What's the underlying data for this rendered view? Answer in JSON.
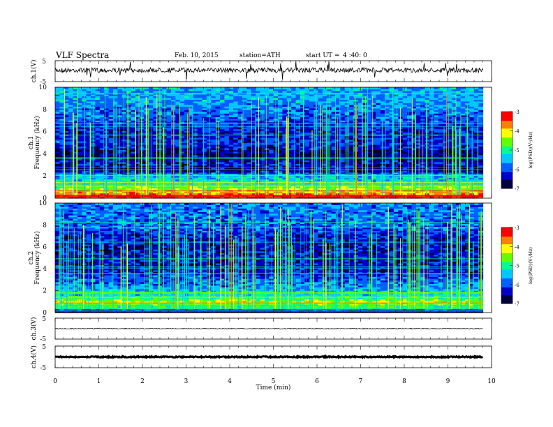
{
  "header": {
    "title": "VLF  Spectra",
    "date": "Feb. 10, 2015",
    "station": "station=ATH",
    "start_label": "start  UT  =",
    "start_time": "4 :40: 0"
  },
  "chart_data": [
    {
      "type": "line",
      "panel": "ch1-waveform",
      "ylabel": "ch.1(V)",
      "ylim": [
        -5,
        5
      ],
      "yticks": [
        "5",
        "-5"
      ],
      "xlim": [
        0,
        10
      ],
      "trace_level_V": 0.5,
      "trace_extent_min": [
        0,
        9.8
      ],
      "description_values": {
        "mean_V": 0.5,
        "approx_noise_amplitude_V": 0.6
      }
    },
    {
      "type": "heatmap",
      "panel": "ch1-spectrogram",
      "ylabel": "ch.1\nFrequency  (kHz)",
      "ylabel_top": "ch.1",
      "ylabel_bottom": "Frequency  (kHz)",
      "ylim": [
        0,
        10
      ],
      "yticks": [
        "0",
        "2",
        "4",
        "6",
        "8",
        "10"
      ],
      "xlim": [
        0,
        10
      ],
      "data_extent_min": [
        0,
        9.8
      ],
      "colorbar": {
        "label": "log(PSD)(V²/Hz)",
        "range": [
          -7,
          -3
        ],
        "ticks": [
          "-3",
          "-4",
          "-5",
          "-6",
          "-7"
        ]
      },
      "frequency_profile_log_psd": [
        {
          "f_kHz": 0.2,
          "value": -3.3
        },
        {
          "f_kHz": 0.5,
          "value": -3.8
        },
        {
          "f_kHz": 1.0,
          "value": -4.6
        },
        {
          "f_kHz": 1.5,
          "value": -5.3
        },
        {
          "f_kHz": 2.0,
          "value": -5.5
        },
        {
          "f_kHz": 2.5,
          "value": -6.6
        },
        {
          "f_kHz": 3.0,
          "value": -6.3
        },
        {
          "f_kHz": 4.0,
          "value": -6.6
        },
        {
          "f_kHz": 5.0,
          "value": -6.1
        },
        {
          "f_kHz": 6.0,
          "value": -6.3
        },
        {
          "f_kHz": 7.0,
          "value": -6.0
        },
        {
          "f_kHz": 8.0,
          "value": -5.8
        },
        {
          "f_kHz": 9.0,
          "value": -5.6
        },
        {
          "f_kHz": 10.0,
          "value": -5.6
        }
      ]
    },
    {
      "type": "heatmap",
      "panel": "ch2-spectrogram",
      "ylabel": "ch.2\nFrequency  (kHz)",
      "ylabel_top": "ch.2",
      "ylabel_bottom": "Frequency  (kHz)",
      "ylim": [
        0,
        10
      ],
      "yticks": [
        "0",
        "2",
        "4",
        "6",
        "8",
        "10"
      ],
      "xlim": [
        0,
        10
      ],
      "data_extent_min": [
        0,
        9.8
      ],
      "colorbar": {
        "label": "log(PSD)(V²/Hz)",
        "range": [
          -7,
          -3
        ],
        "ticks": [
          "-3",
          "-4",
          "-5",
          "-6",
          "-7"
        ]
      },
      "frequency_profile_log_psd": [
        {
          "f_kHz": 0.2,
          "value": -6.6
        },
        {
          "f_kHz": 0.5,
          "value": -5.0
        },
        {
          "f_kHz": 1.0,
          "value": -4.3
        },
        {
          "f_kHz": 1.5,
          "value": -5.2
        },
        {
          "f_kHz": 2.0,
          "value": -5.5
        },
        {
          "f_kHz": 2.5,
          "value": -5.8
        },
        {
          "f_kHz": 3.0,
          "value": -5.9
        },
        {
          "f_kHz": 4.0,
          "value": -6.4
        },
        {
          "f_kHz": 5.0,
          "value": -6.2
        },
        {
          "f_kHz": 6.0,
          "value": -6.4
        },
        {
          "f_kHz": 7.0,
          "value": -6.2
        },
        {
          "f_kHz": 8.0,
          "value": -5.9
        },
        {
          "f_kHz": 9.0,
          "value": -5.8
        },
        {
          "f_kHz": 10.0,
          "value": -5.8
        }
      ]
    },
    {
      "type": "line",
      "panel": "ch3-waveform",
      "ylabel": "ch.3(V)",
      "ylim": [
        -5,
        5
      ],
      "yticks": [
        "5",
        "-5"
      ],
      "xlim": [
        0,
        10
      ],
      "trace_level_V": 0.0,
      "trace_extent_min": [
        0,
        9.8
      ]
    },
    {
      "type": "line",
      "panel": "ch4-waveform",
      "ylabel": "ch.4(V)",
      "ylim": [
        -5,
        5
      ],
      "yticks": [
        "5",
        "-5"
      ],
      "xlim": [
        0,
        10
      ],
      "trace_level_V": 0.0,
      "trace_extent_min": [
        0,
        9.8
      ]
    }
  ],
  "xaxis": {
    "label": "Time  (min)",
    "ticks": [
      "0",
      "1",
      "2",
      "3",
      "4",
      "5",
      "6",
      "7",
      "8",
      "9",
      "10"
    ],
    "range": [
      0,
      10
    ]
  },
  "colors": {
    "colormap": [
      "#000040",
      "#0000c8",
      "#0060ff",
      "#00c8ff",
      "#00ff90",
      "#60ff00",
      "#ffff00",
      "#ff8000",
      "#ff0000",
      "#ff80a0",
      "#ffffff"
    ]
  }
}
